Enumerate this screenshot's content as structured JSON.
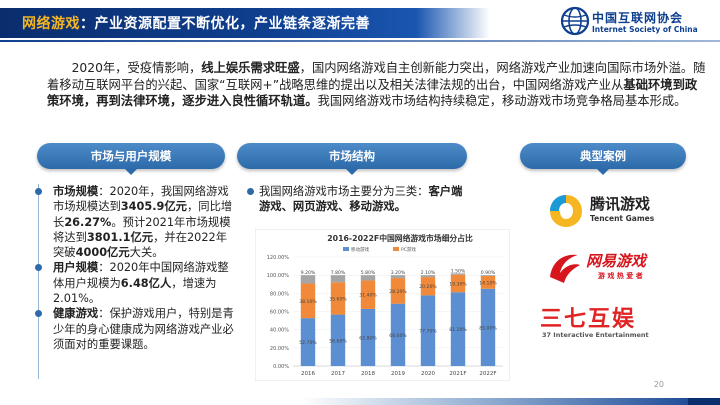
{
  "header": {
    "title_highlight": "网络游戏",
    "title_rest": "：产业资源配置不断优化，产业链条逐渐完善"
  },
  "logo": {
    "cn": "中国互联网协会",
    "en": "Internet Society of China"
  },
  "intro": {
    "p1": "2020年，受疫情影响，",
    "b1": "线上娱乐需求旺盛",
    "p2": "，国内网络游戏自主创新能力突出，网络游戏产业加速向国际市场外溢。随着移动互联网平台的兴起、国家“互联网+”战略思维的提出以及相关法律法规的出台，中国网络游戏产业从",
    "b2": "基础环境到政策环境，再到法律环境，逐步进入良性循环轨道。",
    "p3": "我国网络游戏市场结构持续稳定，移动游戏市场竞争格局基本形成。"
  },
  "pills": {
    "market": "市场与用户规模",
    "structure": "市场结构",
    "cases": "典型案例"
  },
  "market": {
    "m_label": "市场规模",
    "m_1": "：2020年，我国网络游戏市场规模达到",
    "m_v1": "3405.9亿元",
    "m_2": "，同比增长",
    "m_v2": "26.27%",
    "m_3": "。预计2021年市场规模将达到",
    "m_v3": "3801.1亿元",
    "m_4": "，并在2022年突破",
    "m_v4": "4000亿元",
    "m_5": "大关。",
    "u_label": "用户规模",
    "u_1": "：2020年中国网络游戏整体用户规模为",
    "u_v1": "6.48亿人",
    "u_2": "，增速为2.01%。",
    "h_label": "健康游戏",
    "h_1": "：保护游戏用户，特别是青少年的身心健康成为网络游戏产业必须面对的重要课题。"
  },
  "structure": {
    "s_1": "我国网络游戏市场主要分为三类：",
    "s_b": "客户端游戏、网页游戏、移动游戏。"
  },
  "chart_data": {
    "type": "bar",
    "title": "2016-2022F中国网络游戏市场细分占比",
    "categories": [
      "2016",
      "2017",
      "2018",
      "2019",
      "2020",
      "2021F",
      "2022F"
    ],
    "ylim": [
      0,
      120
    ],
    "yticks": [
      "0.00%",
      "20.00%",
      "40.00%",
      "60.00%",
      "80.00%",
      "100.00%",
      "120.00%"
    ],
    "legend": [
      "移动游戏",
      "PC游戏",
      ""
    ],
    "series": [
      {
        "name": "移动游戏",
        "color": "#5b8fd1",
        "values": [
          52.7,
          56.6,
          62.8,
          68.6,
          77.7,
          81.2,
          85.0
        ],
        "labels": [
          "52.70%",
          "56.60%",
          "62.80%",
          "68.60%",
          "77.70%",
          "81.20%",
          "85.00%"
        ]
      },
      {
        "name": "PC游戏",
        "color": "#f08a3a",
        "values": [
          38.1,
          35.6,
          31.4,
          28.2,
          20.2,
          19.3,
          14.1
        ],
        "labels": [
          "38.10%",
          "35.60%",
          "31.40%",
          "28.20%",
          "20.20%",
          "19.30%",
          "14.10%"
        ]
      },
      {
        "name": "",
        "color": "#a5a5a5",
        "values": [
          9.2,
          7.8,
          5.8,
          3.2,
          2.1,
          1.5,
          0.9
        ],
        "labels": [
          "9.20%",
          "7.80%",
          "5.80%",
          "3.20%",
          "2.10%",
          "1.50%",
          "0.90%"
        ]
      }
    ]
  },
  "cases": {
    "tencent_cn": "腾讯游戏",
    "tencent_en": "Tencent Games",
    "netease_cn": "网易游戏",
    "netease_en": "游 戏 热 爱 者",
    "s37_cn": "三七互娱",
    "s37_en": "37 Interactive Entertainment"
  },
  "page_number": "20"
}
